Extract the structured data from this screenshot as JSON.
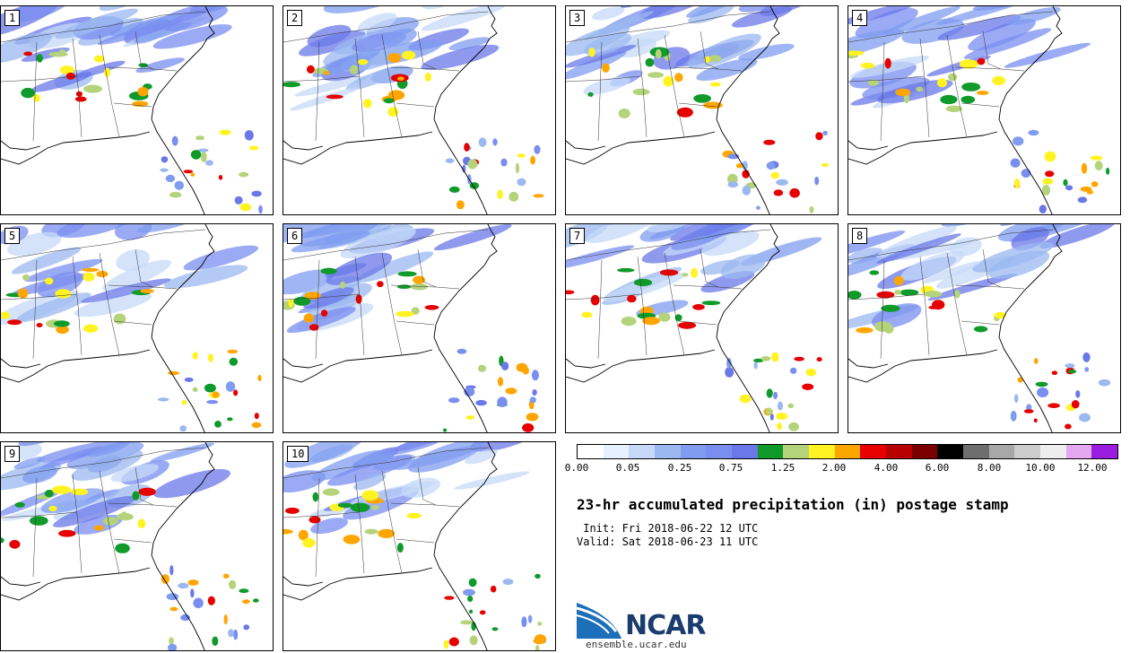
{
  "panels": [
    "1",
    "2",
    "3",
    "4",
    "5",
    "6",
    "7",
    "8",
    "9",
    "10"
  ],
  "colorbar": {
    "colors": [
      "#ffffff",
      "#e6f0ff",
      "#c6d9f8",
      "#9bb8f0",
      "#7f9cf0",
      "#7a8ef0",
      "#6a78e8",
      "#0f9a2a",
      "#b4d37a",
      "#fff322",
      "#ffa500",
      "#e60000",
      "#b80000",
      "#7a0000",
      "#000000",
      "#6e6e6e",
      "#a8a8a8",
      "#cccccc",
      "#eeeeee",
      "#e4a8f0",
      "#9b1de0"
    ],
    "tick_labels": [
      "0.00",
      "0.05",
      "0.25",
      "0.75",
      "1.25",
      "2.00",
      "4.00",
      "6.00",
      "8.00",
      "10.00",
      "12.00"
    ]
  },
  "title": "23-hr accumulated precipitation (in) postage stamp",
  "init": " Init: Fri 2018-06-22 12 UTC",
  "valid": "Valid: Sat 2018-06-23 11 UTC",
  "logo": {
    "text": "NCAR",
    "url": "ensemble.ucar.edu"
  }
}
